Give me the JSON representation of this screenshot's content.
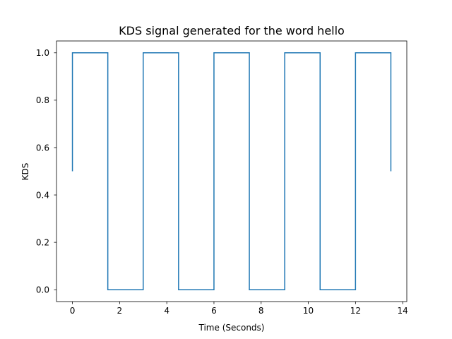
{
  "chart_data": {
    "type": "line",
    "title": "KDS signal generated for the word hello",
    "xlabel": "Time (Seconds)",
    "ylabel": "KDS",
    "xlim": [
      -0.675,
      14.175
    ],
    "ylim": [
      -0.05,
      1.05
    ],
    "xticks": [
      0,
      2,
      4,
      6,
      8,
      10,
      12,
      14
    ],
    "yticks": [
      0.0,
      0.2,
      0.4,
      0.6,
      0.8,
      1.0
    ],
    "xtick_labels": [
      "0",
      "2",
      "4",
      "6",
      "8",
      "10",
      "12",
      "14"
    ],
    "ytick_labels": [
      "0.0",
      "0.2",
      "0.4",
      "0.6",
      "0.8",
      "1.0"
    ],
    "grid": false,
    "series": [
      {
        "color": "#1f77b4",
        "x": [
          0,
          0,
          1.5,
          1.5,
          3,
          3,
          4.5,
          4.5,
          6,
          6,
          7.5,
          7.5,
          9,
          9,
          10.5,
          10.5,
          12,
          12,
          13.5,
          13.5
        ],
        "y": [
          0.5,
          1,
          1,
          0,
          0,
          1,
          1,
          0,
          0,
          1,
          1,
          0,
          0,
          1,
          1,
          0,
          0,
          1,
          1,
          0.5
        ]
      }
    ]
  }
}
